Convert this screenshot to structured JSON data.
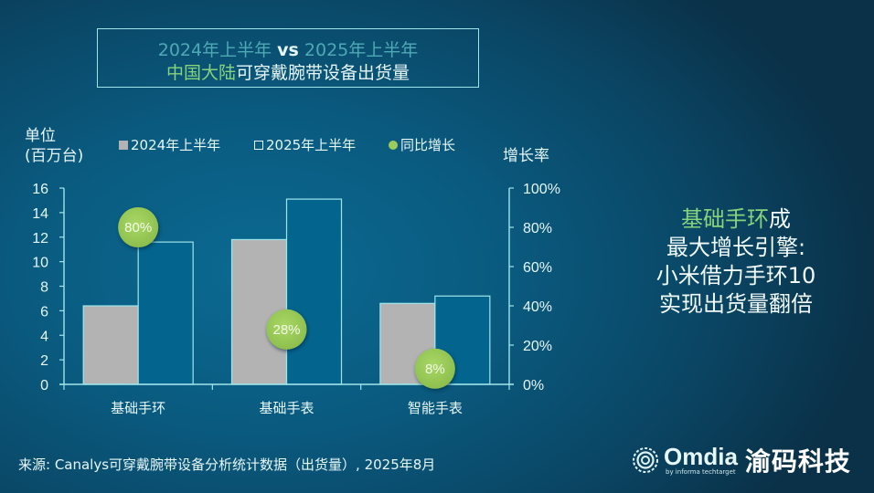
{
  "title": {
    "line1_part1": "2024年上半年",
    "line1_vs": "vs",
    "line1_part2": "2025年上半年",
    "line2_highlight": "中国大陆",
    "line2_rest": "可穿戴腕带设备出货量"
  },
  "axes": {
    "left_unit_line1": "单位",
    "left_unit_line2": "(百万台)",
    "right_label": "增长率",
    "left_ticks": [
      "0",
      "2",
      "4",
      "6",
      "8",
      "10",
      "12",
      "14",
      "16"
    ],
    "right_ticks": [
      "0%",
      "20%",
      "40%",
      "60%",
      "80%",
      "100%"
    ]
  },
  "legend": {
    "series1": "2024年上半年",
    "series2": "2025年上半年",
    "series3": "同比增长"
  },
  "callout": {
    "highlight": "基础手环",
    "line1_rest": "成",
    "line2": "最大增长引擎:",
    "line3": "小米借力手环10",
    "line4": "实现出货量翻倍"
  },
  "footer": {
    "source": "来源: Canalys可穿戴腕带设备分析统计数据（出货量）, 2025年8月",
    "logo_text": "Omdia",
    "logo_sub": "by informa techtarget",
    "brand": "渝码科技"
  },
  "colors": {
    "bar_2024": "#b3b3b3",
    "bar_2025": "#03658e",
    "growth_bubble": "#9ccc5a",
    "axis": "#9fe6ea",
    "highlight_green": "#86d37b"
  },
  "chart_data": {
    "type": "bar",
    "title": "2024年上半年 vs 2025年上半年 中国大陆可穿戴腕带设备出货量",
    "categories": [
      "基础手环",
      "基础手表",
      "智能手表"
    ],
    "series": [
      {
        "name": "2024年上半年",
        "axis": "left",
        "values": [
          6.4,
          11.8,
          6.6
        ]
      },
      {
        "name": "2025年上半年",
        "axis": "left",
        "values": [
          11.6,
          15.1,
          7.2
        ]
      },
      {
        "name": "同比增长",
        "axis": "right",
        "type": "scatter",
        "values": [
          80,
          28,
          8
        ],
        "labels": [
          "80%",
          "28%",
          "8%"
        ]
      }
    ],
    "xlabel": "",
    "ylabel": "单位 (百万台)",
    "y2label": "增长率",
    "ylim": [
      0,
      16
    ],
    "y2lim": [
      0,
      100
    ],
    "yticks": [
      0,
      2,
      4,
      6,
      8,
      10,
      12,
      14,
      16
    ],
    "y2ticks": [
      "0%",
      "20%",
      "40%",
      "60%",
      "80%",
      "100%"
    ],
    "grid": false,
    "legend_position": "top"
  }
}
